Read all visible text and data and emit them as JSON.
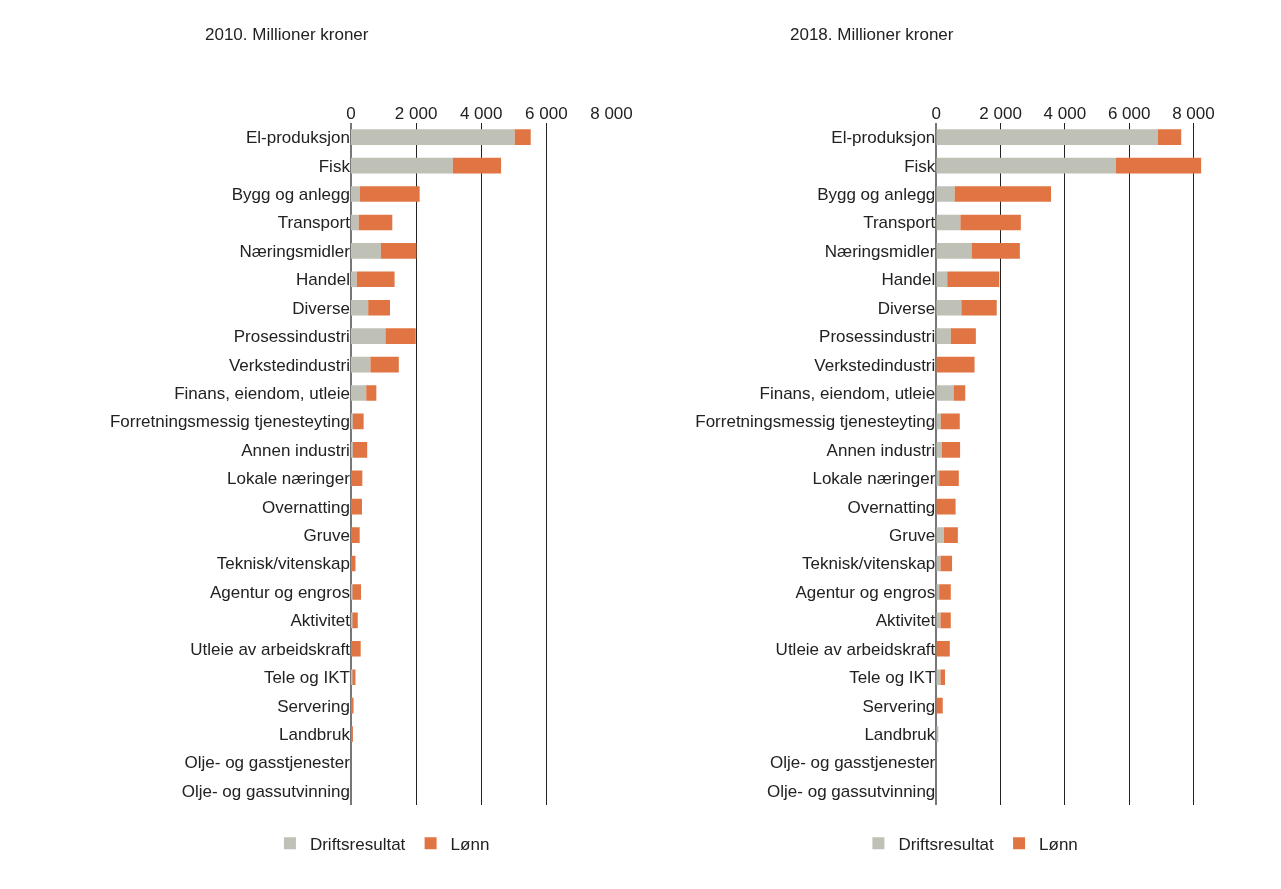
{
  "chart_data": [
    {
      "type": "bar",
      "orientation": "horizontal",
      "stacked": true,
      "title": "2010. Millioner kroner",
      "grid": "x",
      "legend": "bottom",
      "categories": [
        "El-produksjon",
        "Fisk",
        "Bygg og anlegg",
        "Transport",
        "Næringsmidler",
        "Handel",
        "Diverse",
        "Prosessindustri",
        "Verkstedindustri",
        "Finans, eiendom, utleie",
        "Forretningsmessig tjenesteyting",
        "Annen industri",
        "Lokale næringer",
        "Overnatting",
        "Gruve",
        "Teknisk/vitenskap",
        "Agentur og engros",
        "Aktivitet",
        "Utleie av arbeidskraft",
        "Tele og IKT",
        "Servering",
        "Landbruk",
        "Olje- og gasstjenester",
        "Olje- og gassutvinning"
      ],
      "xlim": [
        0,
        8000
      ],
      "xticks": [
        0,
        {
          "value": 2000,
          "label": "2 000"
        },
        {
          "value": 4000,
          "label": "4 000"
        },
        {
          "value": 6000,
          "label": "6 000"
        },
        {
          "value": 8000,
          "label": "8 000"
        }
      ],
      "series": [
        {
          "name": "Driftsresultat",
          "color": "#bfc0b6",
          "values": [
            5030,
            3130,
            270,
            240,
            920,
            180,
            530,
            1060,
            600,
            470,
            60,
            60,
            0,
            0,
            0,
            0,
            50,
            50,
            0,
            50,
            0,
            0,
            0,
            0
          ]
        },
        {
          "name": "Lønn",
          "color": "#e07442",
          "values": [
            490,
            1480,
            1840,
            1030,
            1090,
            1160,
            670,
            930,
            870,
            310,
            330,
            440,
            350,
            340,
            270,
            140,
            260,
            160,
            300,
            90,
            80,
            50,
            0,
            0
          ]
        }
      ]
    },
    {
      "type": "bar",
      "orientation": "horizontal",
      "stacked": true,
      "title": "2018. Millioner kroner",
      "grid": "x",
      "legend": "bottom",
      "categories": [
        "El-produksjon",
        "Fisk",
        "Bygg og anlegg",
        "Transport",
        "Næringsmidler",
        "Handel",
        "Diverse",
        "Prosessindustri",
        "Verkstedindustri",
        "Finans, eiendom, utleie",
        "Forretningsmessig tjenesteyting",
        "Annen industri",
        "Lokale næringer",
        "Overnatting",
        "Gruve",
        "Teknisk/vitenskap",
        "Agentur og engros",
        "Aktivitet",
        "Utleie av arbeidskraft",
        "Tele og IKT",
        "Servering",
        "Landbruk",
        "Olje- og gasstjenester",
        "Olje- og gassutvinning"
      ],
      "xlim": [
        0,
        8300
      ],
      "xticks": [
        0,
        {
          "value": 2000,
          "label": "2 000"
        },
        {
          "value": 4000,
          "label": "4 000"
        },
        {
          "value": 6000,
          "label": "6 000"
        },
        {
          "value": 8000,
          "label": "8 000"
        }
      ],
      "series": [
        {
          "name": "Driftsresultat",
          "color": "#bfc0b6",
          "values": [
            6890,
            5590,
            570,
            750,
            1100,
            340,
            780,
            450,
            null,
            540,
            140,
            170,
            90,
            0,
            240,
            130,
            90,
            130,
            0,
            130,
            0,
            50,
            0,
            0
          ]
        },
        {
          "name": "Lønn",
          "color": "#e07442",
          "values": [
            730,
            2650,
            3000,
            1880,
            1500,
            1620,
            1100,
            780,
            1190,
            360,
            590,
            570,
            610,
            600,
            430,
            360,
            360,
            320,
            420,
            140,
            200,
            0,
            0,
            0
          ]
        }
      ]
    }
  ]
}
